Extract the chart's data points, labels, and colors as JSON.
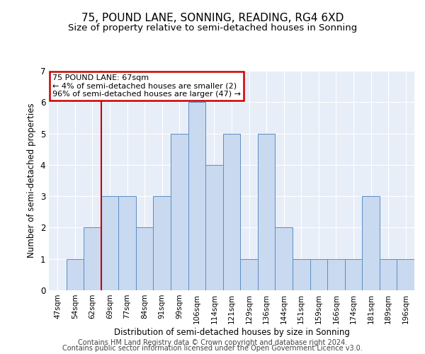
{
  "title": "75, POUND LANE, SONNING, READING, RG4 6XD",
  "subtitle": "Size of property relative to semi-detached houses in Sonning",
  "xlabel": "Distribution of semi-detached houses by size in Sonning",
  "ylabel": "Number of semi-detached properties",
  "categories": [
    "47sqm",
    "54sqm",
    "62sqm",
    "69sqm",
    "77sqm",
    "84sqm",
    "91sqm",
    "99sqm",
    "106sqm",
    "114sqm",
    "121sqm",
    "129sqm",
    "136sqm",
    "144sqm",
    "151sqm",
    "159sqm",
    "166sqm",
    "174sqm",
    "181sqm",
    "189sqm",
    "196sqm"
  ],
  "values": [
    0,
    1,
    2,
    3,
    3,
    2,
    3,
    5,
    6,
    4,
    5,
    1,
    5,
    2,
    1,
    1,
    1,
    1,
    3,
    1,
    1
  ],
  "bar_color": "#c9d9f0",
  "bar_edge_color": "#5b8ec4",
  "highlight_line_color": "#cc0000",
  "annotation_text": "75 POUND LANE: 67sqm\n← 4% of semi-detached houses are smaller (2)\n96% of semi-detached houses are larger (47) →",
  "annotation_box_color": "#cc0000",
  "ylim": [
    0,
    7
  ],
  "yticks": [
    0,
    1,
    2,
    3,
    4,
    5,
    6,
    7
  ],
  "footer_line1": "Contains HM Land Registry data © Crown copyright and database right 2024.",
  "footer_line2": "Contains public sector information licensed under the Open Government Licence v3.0.",
  "background_color": "#ffffff",
  "plot_bg_color": "#e8eef8",
  "title_fontsize": 11,
  "subtitle_fontsize": 9.5,
  "axis_label_fontsize": 8.5,
  "tick_fontsize": 7.5,
  "footer_fontsize": 7
}
